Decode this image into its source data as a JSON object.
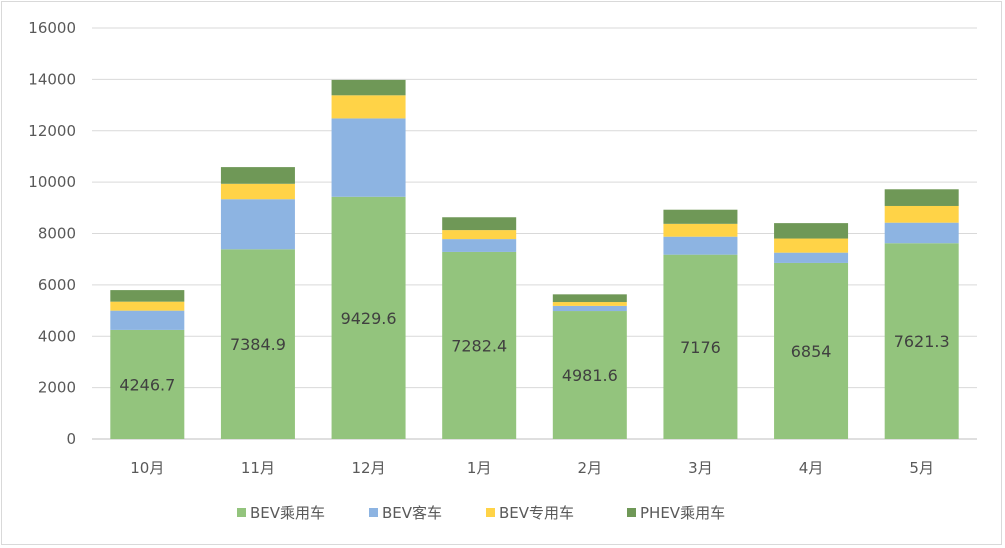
{
  "chart_data": {
    "type": "bar",
    "stacked": true,
    "categories": [
      "10月",
      "11月",
      "12月",
      "1月",
      "2月",
      "3月",
      "4月",
      "5月"
    ],
    "series": [
      {
        "name": "BEV乘用车",
        "color": "#93c47d",
        "values": [
          4246.7,
          7384.9,
          9429.6,
          7282.4,
          4981.6,
          7176,
          6854,
          7621.3
        ],
        "labels": [
          "4246.7",
          "7384.9",
          "9429.6",
          "7282.4",
          "4981.6",
          "7176",
          "6854",
          "7621.3"
        ]
      },
      {
        "name": "BEV客车",
        "color": "#8db4e2",
        "values": [
          750,
          1950,
          3050,
          500,
          200,
          700,
          400,
          800
        ]
      },
      {
        "name": "BEV专用车",
        "color": "#ffd347",
        "values": [
          350,
          600,
          900,
          350,
          150,
          500,
          550,
          650
        ]
      },
      {
        "name": "PHEV乘用车",
        "color": "#6f9857",
        "values": [
          450,
          650,
          600,
          500,
          300,
          550,
          600,
          650
        ]
      }
    ],
    "ylim": [
      0,
      16000
    ],
    "yticks": [
      "0",
      "2000",
      "4000",
      "6000",
      "8000",
      "10000",
      "12000",
      "14000",
      "16000"
    ],
    "grid": true,
    "legend_position": "bottom",
    "title": "",
    "xlabel": "",
    "ylabel": ""
  }
}
